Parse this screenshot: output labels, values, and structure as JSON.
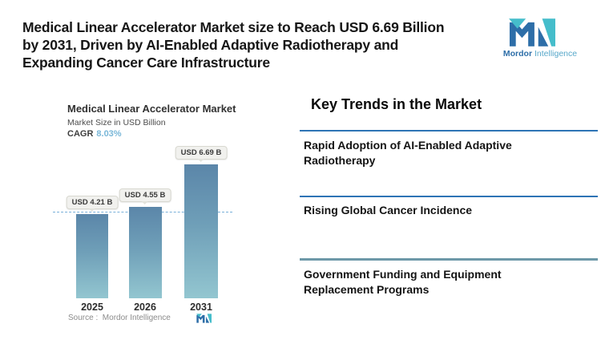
{
  "header": {
    "title_lines": [
      "Medical Linear Accelerator Market size to Reach USD 6.69 Billion",
      "by 2031, Driven by AI-Enabled Adaptive Radiotherapy and",
      "Expanding Cancer Care Infrastructure"
    ],
    "brand": {
      "name_bold": "Mordor",
      "name_light": "Intelligence"
    }
  },
  "chart": {
    "title": "Medical Linear Accelerator Market",
    "subtitle": "Market Size in USD Billion",
    "cagr_label": "CAGR",
    "cagr_value": "8.03%",
    "source": "Source :  Mordor Intelligence",
    "chart_data": {
      "type": "bar",
      "categories": [
        "2025",
        "2026",
        "2031"
      ],
      "values": [
        4.21,
        4.55,
        6.69
      ],
      "bar_labels": [
        "USD 4.21 B",
        "USD 4.55 B",
        "USD 6.69 B"
      ],
      "title": "Medical Linear Accelerator Market",
      "ylabel": "Market Size in USD Billion",
      "ylim": [
        0,
        7
      ],
      "reference_line": 4.21,
      "grid": false,
      "legend": "none",
      "bar_gradient_top": "#5b86a9",
      "bar_gradient_bottom": "#93c6d0",
      "reference_line_color": "#79afd9"
    }
  },
  "trends": {
    "heading": "Key Trends in the Market",
    "items": [
      {
        "label": "Rapid Adoption of AI-Enabled Adaptive Radiotherapy"
      },
      {
        "label": "Rising Global Cancer Incidence"
      },
      {
        "label": "Government Funding and Equipment Replacement Programs"
      }
    ]
  },
  "colors": {
    "logo_dark_blue": "#2d6ea8",
    "logo_teal": "#45bdcb",
    "cagr_value": "#79b7d8",
    "divider_blue": "#2e74b5",
    "divider_slate": "#6d98a8",
    "dashed_line": "#79afd9"
  }
}
